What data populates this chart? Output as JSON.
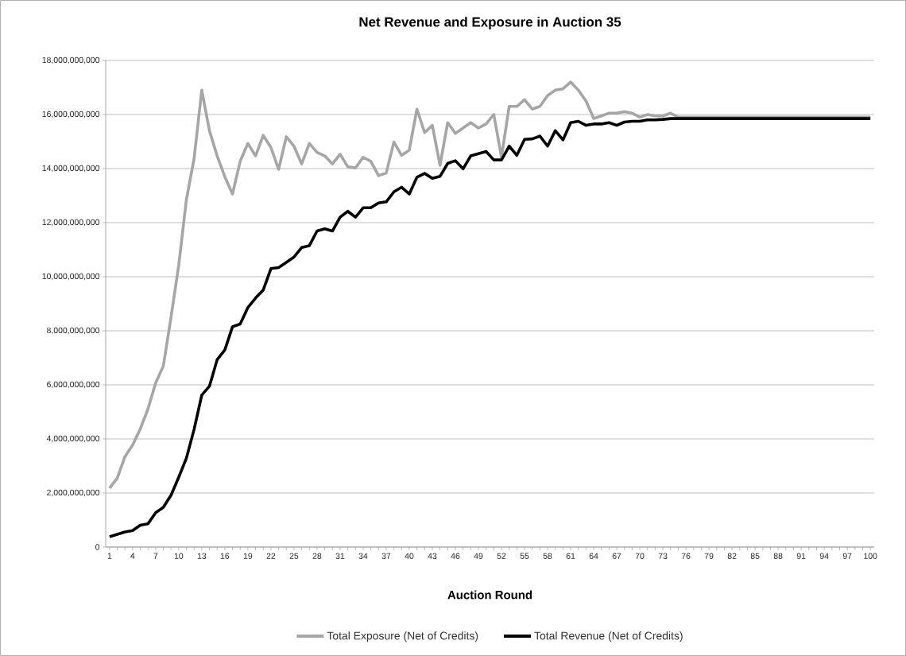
{
  "chart_data": {
    "type": "line",
    "title": "Net Revenue and Exposure in Auction 35",
    "xlabel": "Auction Round",
    "categories": [
      "1",
      null,
      null,
      "4",
      null,
      null,
      "7",
      null,
      null,
      "10",
      null,
      null,
      "13",
      null,
      null,
      "16",
      null,
      null,
      "19",
      null,
      null,
      "22",
      null,
      null,
      "25",
      null,
      null,
      "28",
      null,
      null,
      "31",
      null,
      null,
      "34",
      null,
      null,
      "37",
      null,
      null,
      "40",
      null,
      null,
      "43",
      null,
      null,
      "46",
      null,
      null,
      "49",
      null,
      null,
      "52",
      null,
      null,
      "55",
      null,
      null,
      "58",
      null,
      null,
      "61",
      null,
      null,
      "64",
      null,
      null,
      "67",
      null,
      null,
      "70",
      null,
      null,
      "73",
      null,
      null,
      "76",
      null,
      null,
      "79",
      null,
      null,
      "82",
      null,
      null,
      "85",
      null,
      null,
      "88",
      null,
      null,
      "91",
      null,
      null,
      "94",
      null,
      null,
      "97",
      null,
      null,
      "100"
    ],
    "series": [
      {
        "name": "Total Exposure (Net of Credits)",
        "color": "#a6a6a6",
        "values": [
          2180000000.0,
          2550000000.0,
          3340000000.0,
          3770000000.0,
          4370000000.0,
          5110000000.0,
          6070000000.0,
          6700000000.0,
          8500000000.0,
          10420000000.0,
          12850000000.0,
          14370000000.0,
          16900000000.0,
          15400000000.0,
          14470000000.0,
          13700000000.0,
          13060000000.0,
          14270000000.0,
          14930000000.0,
          14470000000.0,
          15230000000.0,
          14780000000.0,
          13970000000.0,
          15180000000.0,
          14830000000.0,
          14170000000.0,
          14930000000.0,
          14600000000.0,
          14470000000.0,
          14170000000.0,
          14530000000.0,
          14070000000.0,
          14020000000.0,
          14420000000.0,
          14270000000.0,
          13740000000.0,
          13840000000.0,
          14980000000.0,
          14490000000.0,
          14680000000.0,
          16200000000.0,
          15330000000.0,
          15600000000.0,
          14120000000.0,
          15700000000.0,
          15300000000.0,
          15500000000.0,
          15700000000.0,
          15500000000.0,
          15650000000.0,
          16000000000.0,
          14420000000.0,
          16300000000.0,
          16300000000.0,
          16550000000.0,
          16200000000.0,
          16300000000.0,
          16700000000.0,
          16900000000.0,
          16950000000.0,
          17200000000.0,
          16900000000.0,
          16500000000.0,
          15850000000.0,
          15950000000.0,
          16050000000.0,
          16050000000.0,
          16100000000.0,
          16050000000.0,
          15900000000.0,
          16000000000.0,
          15950000000.0,
          15950000000.0,
          16050000000.0,
          15900000000.0,
          15900000000.0,
          15900000000.0,
          15900000000.0,
          15900000000.0,
          15900000000.0,
          15900000000.0,
          15900000000.0,
          15900000000.0,
          15900000000.0,
          15900000000.0,
          15900000000.0,
          15900000000.0,
          15900000000.0,
          15900000000.0,
          15900000000.0,
          15900000000.0,
          15900000000.0,
          15900000000.0,
          15900000000.0,
          15900000000.0,
          15900000000.0,
          15900000000.0,
          15900000000.0,
          15900000000.0,
          15900000000.0
        ]
      },
      {
        "name": "Total Revenue (Net of Credits)",
        "color": "#000000",
        "values": [
          380000000.0,
          470000000.0,
          560000000.0,
          610000000.0,
          810000000.0,
          860000000.0,
          1270000000.0,
          1470000000.0,
          1920000000.0,
          2580000000.0,
          3290000000.0,
          4350000000.0,
          5620000000.0,
          5950000000.0,
          6930000000.0,
          7290000000.0,
          8150000000.0,
          8250000000.0,
          8860000000.0,
          9210000000.0,
          9510000000.0,
          10300000000.0,
          10340000000.0,
          10530000000.0,
          10730000000.0,
          11080000000.0,
          11150000000.0,
          11690000000.0,
          11770000000.0,
          11690000000.0,
          12200000000.0,
          12420000000.0,
          12200000000.0,
          12550000000.0,
          12550000000.0,
          12730000000.0,
          12770000000.0,
          13140000000.0,
          13310000000.0,
          13060000000.0,
          13680000000.0,
          13820000000.0,
          13640000000.0,
          13710000000.0,
          14190000000.0,
          14290000000.0,
          13990000000.0,
          14470000000.0,
          14550000000.0,
          14630000000.0,
          14320000000.0,
          14320000000.0,
          14830000000.0,
          14490000000.0,
          15080000000.0,
          15100000000.0,
          15200000000.0,
          14830000000.0,
          15400000000.0,
          15060000000.0,
          15700000000.0,
          15750000000.0,
          15600000000.0,
          15650000000.0,
          15650000000.0,
          15700000000.0,
          15600000000.0,
          15720000000.0,
          15750000000.0,
          15750000000.0,
          15800000000.0,
          15800000000.0,
          15820000000.0,
          15850000000.0,
          15850000000.0,
          15850000000.0,
          15850000000.0,
          15850000000.0,
          15850000000.0,
          15850000000.0,
          15850000000.0,
          15850000000.0,
          15850000000.0,
          15850000000.0,
          15850000000.0,
          15850000000.0,
          15850000000.0,
          15850000000.0,
          15850000000.0,
          15850000000.0,
          15850000000.0,
          15850000000.0,
          15850000000.0,
          15850000000.0,
          15850000000.0,
          15850000000.0,
          15850000000.0,
          15850000000.0,
          15850000000.0,
          15850000000.0
        ]
      }
    ],
    "ylim": [
      0,
      18000000000.0
    ],
    "yticks": [
      {
        "value": 0,
        "label": "0"
      },
      {
        "value": 2000000000.0,
        "label": "2,000,000,000"
      },
      {
        "value": 4000000000.0,
        "label": "4,000,000,000"
      },
      {
        "value": 6000000000.0,
        "label": "6,000,000,000"
      },
      {
        "value": 8000000000.0,
        "label": "8,000,000,000"
      },
      {
        "value": 10000000000.0,
        "label": "10,000,000,000"
      },
      {
        "value": 12000000000.0,
        "label": "12,000,000,000"
      },
      {
        "value": 14000000000.0,
        "label": "14,000,000,000"
      },
      {
        "value": 16000000000.0,
        "label": "16,000,000,000"
      },
      {
        "value": 18000000000.0,
        "label": "18,000,000,000"
      }
    ],
    "grid": "y",
    "legend": "bottom"
  }
}
